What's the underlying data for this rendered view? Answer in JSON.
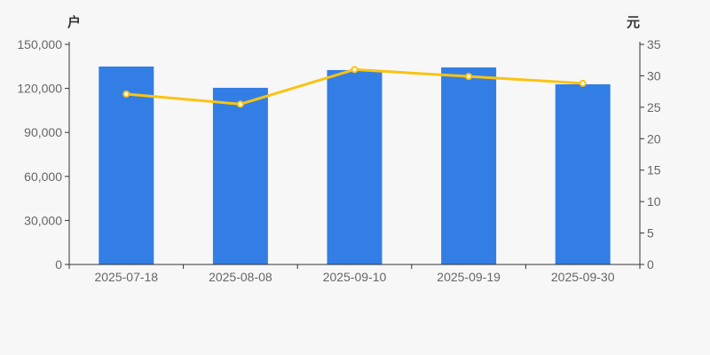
{
  "chart_data": {
    "type": "bar",
    "categories": [
      "2025-07-18",
      "2025-08-08",
      "2025-09-10",
      "2025-09-19",
      "2025-09-30"
    ],
    "series": [
      {
        "id": "bar-series",
        "type": "bar",
        "axis": "left",
        "values": [
          134900,
          120400,
          132500,
          134300,
          122800
        ]
      },
      {
        "id": "line-series",
        "type": "line",
        "axis": "right",
        "values": [
          27.1,
          25.5,
          31.0,
          29.9,
          28.8
        ]
      }
    ],
    "left_axis": {
      "unit": "户",
      "min": 0,
      "max": 150000,
      "ticks": [
        0,
        30000,
        60000,
        90000,
        120000,
        150000
      ]
    },
    "right_axis": {
      "unit": "元",
      "min": 0,
      "max": 35,
      "ticks": [
        0,
        5,
        10,
        15,
        20,
        25,
        30,
        35
      ]
    },
    "colors": {
      "background": "#f7f7f7",
      "bar": "#337ee5",
      "line": "#fbc311",
      "marker_fill": "#ffffff",
      "axis_line": "#333333",
      "tick_text": "#666666",
      "unit_text": "#333333"
    },
    "legend": "none",
    "grid": "off"
  }
}
